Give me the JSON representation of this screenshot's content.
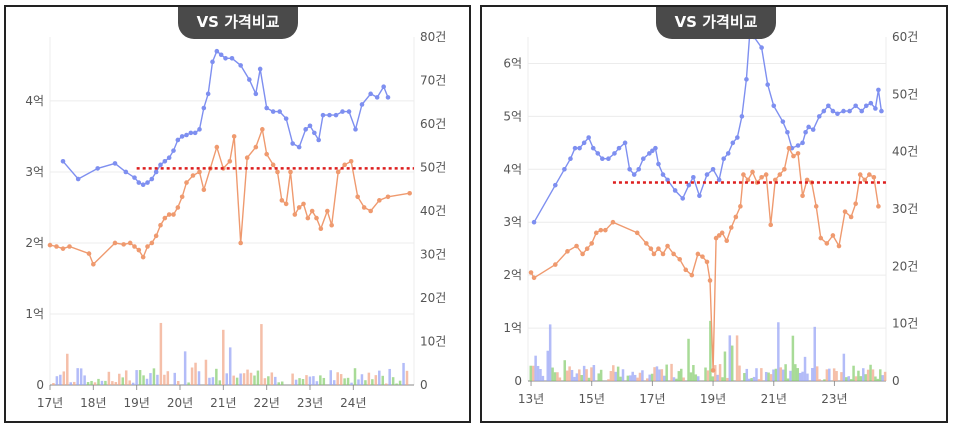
{
  "charts": {
    "left": {
      "badge": "VS 가격비교"
    },
    "right": {
      "badge": "VS 가격비교"
    }
  },
  "colors": {
    "price_a": "#7e8ff0",
    "price_b": "#ef9a6f",
    "vol_a": "#9aa6f5",
    "vol_b": "#f2a98c",
    "vol_c": "#8bcf74",
    "ref": "#dd1f1f",
    "grid": "#ececec",
    "axis": "#555555"
  },
  "chart_data": [
    {
      "type": "line",
      "title": "VS 가격비교",
      "x_ticks": [
        "17년",
        "18년",
        "19년",
        "20년",
        "21년",
        "22년",
        "23년",
        "24년"
      ],
      "xlim": [
        2017.0,
        2025.4
      ],
      "y_left_ticks": [
        "0",
        "1억",
        "2억",
        "3억",
        "4억"
      ],
      "ylim_left": [
        0,
        4.9
      ],
      "y_right_ticks": [
        "0",
        "10건",
        "20건",
        "30건",
        "40건",
        "50건",
        "60건",
        "70건",
        "80건"
      ],
      "ylim_right": [
        0,
        80
      ],
      "reference_line": 3.05,
      "series": [
        {
          "x": [
            2017.3,
            2017.65,
            2018.1,
            2018.5,
            2018.75,
            2018.95,
            2019.05,
            2019.15,
            2019.25,
            2019.35,
            2019.45,
            2019.55,
            2019.65,
            2019.75,
            2019.85,
            2019.95,
            2020.05,
            2020.15,
            2020.25,
            2020.35,
            2020.45,
            2020.55,
            2020.65,
            2020.75,
            2020.85,
            2020.95,
            2021.05,
            2021.2,
            2021.4,
            2021.6,
            2021.75,
            2021.85,
            2022.0,
            2022.15,
            2022.3,
            2022.45,
            2022.6,
            2022.75,
            2022.9,
            2023.0,
            2023.1,
            2023.2,
            2023.3,
            2023.45,
            2023.6,
            2023.75,
            2023.9,
            2024.05,
            2024.2,
            2024.4,
            2024.55,
            2024.7,
            2024.8
          ],
          "values": [
            3.15,
            2.9,
            3.05,
            3.12,
            3.0,
            2.92,
            2.85,
            2.82,
            2.85,
            2.9,
            3.0,
            3.1,
            3.15,
            3.2,
            3.3,
            3.45,
            3.5,
            3.52,
            3.55,
            3.55,
            3.6,
            3.9,
            4.1,
            4.55,
            4.7,
            4.65,
            4.6,
            4.6,
            4.5,
            4.3,
            4.1,
            4.45,
            3.9,
            3.85,
            3.85,
            3.75,
            3.4,
            3.35,
            3.6,
            3.65,
            3.55,
            3.45,
            3.8,
            3.8,
            3.8,
            3.85,
            3.85,
            3.6,
            3.95,
            4.1,
            4.05,
            4.2,
            4.05
          ]
        },
        {
          "x": [
            2017.0,
            2017.15,
            2017.3,
            2017.45,
            2017.9,
            2018.0,
            2018.5,
            2018.7,
            2018.85,
            2018.95,
            2019.05,
            2019.15,
            2019.25,
            2019.35,
            2019.45,
            2019.55,
            2019.65,
            2019.75,
            2019.85,
            2019.95,
            2020.05,
            2020.15,
            2020.3,
            2020.45,
            2020.55,
            2020.7,
            2020.85,
            2021.0,
            2021.15,
            2021.25,
            2021.4,
            2021.55,
            2021.75,
            2021.9,
            2022.0,
            2022.15,
            2022.25,
            2022.35,
            2022.45,
            2022.55,
            2022.65,
            2022.75,
            2022.85,
            2022.95,
            2023.05,
            2023.15,
            2023.25,
            2023.4,
            2023.5,
            2023.65,
            2023.8,
            2023.95,
            2024.1,
            2024.25,
            2024.4,
            2024.6,
            2024.8,
            2025.3
          ],
          "values": [
            1.97,
            1.95,
            1.92,
            1.95,
            1.85,
            1.7,
            2.0,
            1.98,
            2.0,
            1.95,
            1.9,
            1.8,
            1.95,
            2.0,
            2.1,
            2.25,
            2.35,
            2.4,
            2.4,
            2.5,
            2.65,
            2.85,
            2.95,
            3.0,
            2.75,
            3.05,
            3.35,
            3.05,
            3.15,
            3.5,
            2.0,
            3.2,
            3.35,
            3.6,
            3.25,
            3.1,
            3.0,
            2.6,
            2.55,
            3.0,
            2.4,
            2.5,
            2.55,
            2.35,
            2.45,
            2.35,
            2.2,
            2.45,
            2.25,
            3.0,
            3.1,
            3.15,
            2.65,
            2.5,
            2.45,
            2.6,
            2.65,
            2.7
          ]
        }
      ]
    },
    {
      "type": "line",
      "title": "VS 가격비교",
      "x_ticks": [
        "13년",
        "15년",
        "17년",
        "19년",
        "21년",
        "23년"
      ],
      "xlim": [
        2012.9,
        2024.7
      ],
      "y_left_ticks": [
        "0",
        "1억",
        "2억",
        "3억",
        "4억",
        "5억",
        "6억"
      ],
      "ylim_left": [
        0,
        6.5
      ],
      "y_right_ticks": [
        "0",
        "10건",
        "20건",
        "30건",
        "40건",
        "50건",
        "60건"
      ],
      "ylim_right": [
        0,
        60
      ],
      "reference_line": 3.75,
      "series": [
        {
          "x": [
            2013.1,
            2013.8,
            2014.1,
            2014.3,
            2014.45,
            2014.6,
            2014.75,
            2014.9,
            2015.05,
            2015.2,
            2015.35,
            2015.55,
            2015.75,
            2015.9,
            2016.1,
            2016.25,
            2016.4,
            2016.55,
            2016.7,
            2016.9,
            2017.0,
            2017.1,
            2017.2,
            2017.35,
            2017.5,
            2017.75,
            2018.0,
            2018.2,
            2018.35,
            2018.55,
            2018.8,
            2019.0,
            2019.2,
            2019.35,
            2019.5,
            2019.65,
            2019.8,
            2019.95,
            2020.1,
            2020.2,
            2020.35,
            2020.6,
            2020.8,
            2021.0,
            2021.3,
            2021.45,
            2021.6,
            2021.8,
            2021.95,
            2022.05,
            2022.15,
            2022.3,
            2022.5,
            2022.65,
            2022.8,
            2022.95,
            2023.1,
            2023.3,
            2023.5,
            2023.7,
            2023.9,
            2024.05,
            2024.2,
            2024.35,
            2024.45,
            2024.55
          ],
          "values": [
            3.0,
            3.7,
            4.0,
            4.2,
            4.4,
            4.4,
            4.5,
            4.6,
            4.4,
            4.3,
            4.2,
            4.2,
            4.3,
            4.4,
            4.5,
            4.0,
            3.9,
            4.0,
            4.2,
            4.3,
            4.35,
            4.4,
            4.1,
            3.9,
            3.8,
            3.6,
            3.45,
            3.7,
            3.85,
            3.5,
            3.9,
            4.0,
            3.8,
            4.2,
            4.3,
            4.5,
            4.6,
            5.0,
            5.7,
            6.5,
            6.5,
            6.3,
            5.6,
            5.2,
            4.9,
            4.7,
            4.4,
            4.45,
            4.5,
            4.7,
            4.8,
            4.75,
            5.0,
            5.1,
            5.2,
            5.1,
            5.05,
            5.1,
            5.1,
            5.2,
            5.1,
            5.2,
            5.25,
            5.15,
            5.5,
            5.1
          ]
        },
        {
          "x": [
            2013.0,
            2013.1,
            2013.8,
            2014.2,
            2014.5,
            2014.7,
            2014.85,
            2015.0,
            2015.15,
            2015.3,
            2015.45,
            2015.7,
            2016.5,
            2016.8,
            2016.95,
            2017.05,
            2017.2,
            2017.35,
            2017.5,
            2017.7,
            2017.9,
            2018.1,
            2018.3,
            2018.5,
            2018.65,
            2018.8,
            2018.9,
            2019.0,
            2019.1,
            2019.2,
            2019.3,
            2019.45,
            2019.6,
            2019.75,
            2019.9,
            2020.0,
            2020.15,
            2020.3,
            2020.45,
            2020.6,
            2020.75,
            2020.9,
            2021.05,
            2021.2,
            2021.35,
            2021.5,
            2021.65,
            2021.8,
            2021.95,
            2022.1,
            2022.25,
            2022.4,
            2022.55,
            2022.75,
            2022.95,
            2023.15,
            2023.35,
            2023.55,
            2023.7,
            2023.85,
            2024.0,
            2024.15,
            2024.3,
            2024.45
          ],
          "values": [
            2.05,
            1.95,
            2.2,
            2.45,
            2.55,
            2.4,
            2.5,
            2.6,
            2.8,
            2.85,
            2.85,
            3.0,
            2.8,
            2.6,
            2.5,
            2.4,
            2.5,
            2.4,
            2.55,
            2.4,
            2.3,
            2.1,
            2.0,
            2.4,
            2.35,
            2.25,
            1.9,
            0.2,
            2.7,
            2.75,
            2.8,
            2.65,
            2.9,
            3.1,
            3.3,
            3.9,
            3.8,
            3.95,
            3.75,
            3.85,
            3.9,
            2.95,
            3.8,
            3.9,
            4.0,
            4.4,
            4.25,
            4.3,
            3.5,
            3.8,
            3.75,
            3.3,
            2.7,
            2.6,
            2.75,
            2.55,
            3.2,
            3.1,
            3.35,
            3.9,
            3.8,
            3.9,
            3.85,
            3.3
          ]
        }
      ]
    }
  ]
}
